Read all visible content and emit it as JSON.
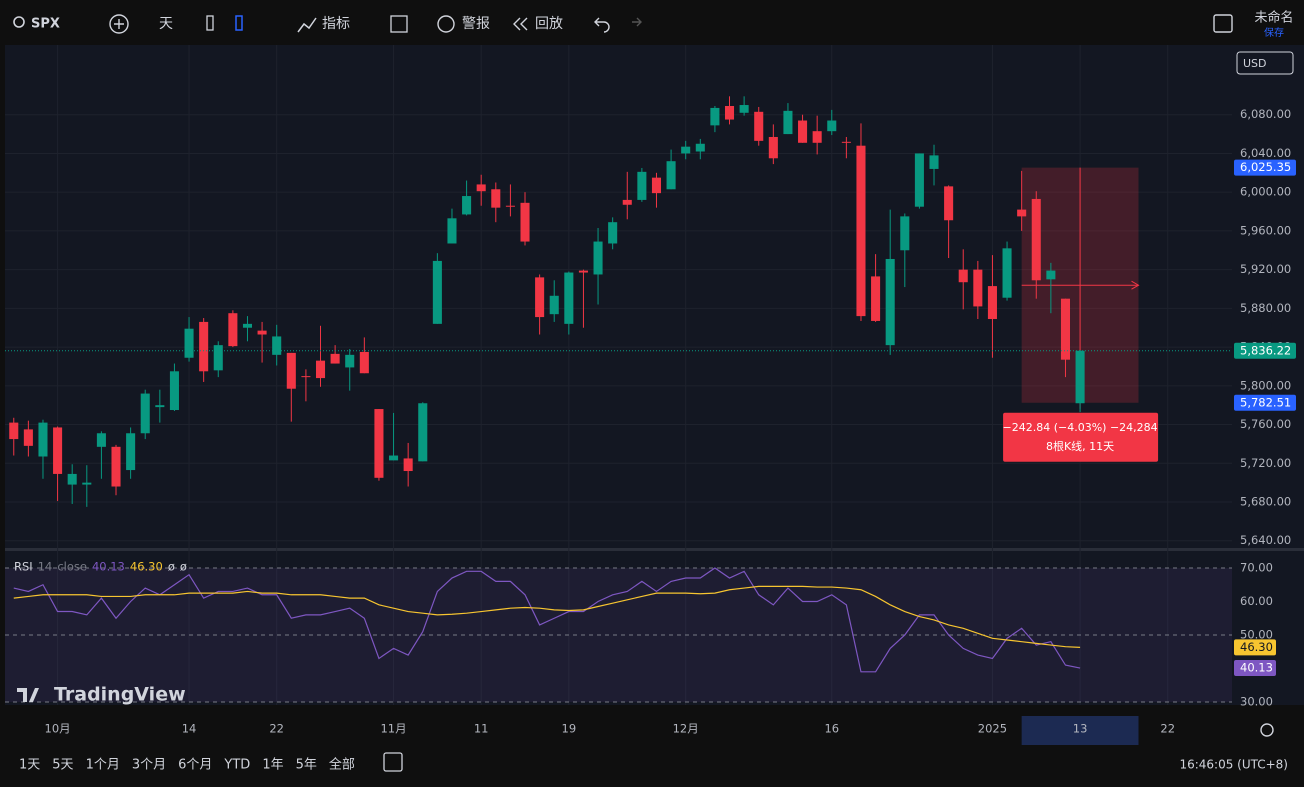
{
  "toolbar": {
    "symbol": "SPX",
    "interval": "天",
    "indicators": "指标",
    "alerts": "警报",
    "replay": "回放",
    "layout_name": "未命名",
    "save": "保存",
    "currency": "USD"
  },
  "chart_data": [
    {
      "type": "candlestick",
      "up_color": "#089981",
      "down_color": "#f23645",
      "open": [
        5762,
        5755,
        5727,
        5757,
        5698,
        5698,
        5737,
        5737,
        5713,
        5751,
        5778,
        5775,
        5829,
        5866,
        5816,
        5875,
        5860,
        5857,
        5832,
        5834,
        5810,
        5826,
        5833,
        5819,
        5835,
        5776,
        5723,
        5725,
        5722,
        5864,
        5947,
        5977,
        6008,
        6003,
        5986,
        5989,
        5912,
        5874,
        5864,
        5919,
        5915,
        5947,
        5992,
        5992,
        6015,
        6003,
        6040,
        6042,
        6069,
        6089,
        6082,
        6083,
        6057,
        6060,
        6074,
        6063,
        6063,
        6052,
        6048,
        5913,
        5842,
        5940,
        5985,
        6024,
        6006,
        5920,
        5920,
        5903,
        5891,
        5982,
        5993,
        5910,
        5890,
        5782
      ],
      "high": [
        5767,
        5764,
        5765,
        5758,
        5719,
        5718,
        5753,
        5739,
        5757,
        5796,
        5796,
        5823,
        5871,
        5870,
        5846,
        5878,
        5872,
        5866,
        5863,
        5834,
        5817,
        5862,
        5842,
        5838,
        5850,
        5776,
        5772,
        5741,
        5783,
        5937,
        5983,
        6012,
        6018,
        6010,
        6008,
        6000,
        5915,
        5909,
        5918,
        5920,
        5963,
        5974,
        6021,
        6025,
        6020,
        6044,
        6053,
        6055,
        6089,
        6099,
        6099,
        6088,
        6070,
        6092,
        6080,
        6079,
        6085,
        6057,
        6071,
        5936,
        5982,
        5978,
        6040,
        6049,
        6007,
        5941,
        5929,
        5935,
        5949,
        6022,
        6001,
        5927,
        5890,
        5837
      ],
      "low": [
        5728,
        5727,
        5704,
        5681,
        5678,
        5675,
        5704,
        5687,
        5704,
        5745,
        5762,
        5774,
        5825,
        5804,
        5809,
        5840,
        5846,
        5824,
        5821,
        5763,
        5784,
        5799,
        5823,
        5795,
        5813,
        5702,
        5723,
        5696,
        5722,
        5864,
        5947,
        5976,
        5986,
        5969,
        5975,
        5945,
        5853,
        5866,
        5853,
        5860,
        5884,
        5941,
        5972,
        5990,
        5984,
        6003,
        6034,
        6034,
        6062,
        6070,
        6079,
        6048,
        6029,
        6060,
        6051,
        6039,
        6059,
        6035,
        5867,
        5866,
        5832,
        5902,
        5983,
        6007,
        5932,
        5879,
        5869,
        5829,
        5888,
        5960,
        5890,
        5875,
        5809,
        5773
      ],
      "close": [
        5745,
        5738,
        5762,
        5709,
        5709,
        5700,
        5751,
        5696,
        5751,
        5792,
        5780,
        5815,
        5859,
        5815,
        5842,
        5841,
        5864,
        5853,
        5851,
        5797,
        5809,
        5808,
        5823,
        5832,
        5813,
        5705,
        5728,
        5712,
        5782,
        5929,
        5973,
        5996,
        6001,
        5984,
        5985,
        5949,
        5871,
        5893,
        5917,
        5917,
        5949,
        5969,
        5987,
        6021,
        5999,
        6032,
        6047,
        6050,
        6087,
        6075,
        6090,
        6053,
        6035,
        6084,
        6051,
        6051,
        6074,
        6051,
        5872,
        5867,
        5931,
        5975,
        6040,
        6038,
        5971,
        5907,
        5882,
        5869,
        5942,
        5975,
        5909,
        5919,
        5827,
        5836.22
      ],
      "xlim": [
        -0.6,
        83.4
      ],
      "ylim": [
        5632.5,
        6152
      ],
      "xticks": [
        {
          "value": 3,
          "label": "10月"
        },
        {
          "value": 12,
          "label": "14"
        },
        {
          "value": 18,
          "label": "22"
        },
        {
          "value": 26,
          "label": "11月"
        },
        {
          "value": 32,
          "label": "11"
        },
        {
          "value": 38,
          "label": "19"
        },
        {
          "value": 46,
          "label": "12月"
        },
        {
          "value": 56,
          "label": "16"
        },
        {
          "value": 67,
          "label": "2025"
        },
        {
          "value": 73,
          "label": "13"
        },
        {
          "value": 79,
          "label": "22"
        }
      ],
      "yticks": [
        {
          "value": 5640,
          "label": "5,640.00"
        },
        {
          "value": 5680,
          "label": "5,680.00"
        },
        {
          "value": 5720,
          "label": "5,720.00"
        },
        {
          "value": 5760,
          "label": "5,760.00"
        },
        {
          "value": 5800,
          "label": "5,800.00"
        },
        {
          "value": 5840,
          "label": "5,840.00"
        },
        {
          "value": 5880,
          "label": "5,880.00"
        },
        {
          "value": 5920,
          "label": "5,920.00"
        },
        {
          "value": 5960,
          "label": "5,960.00"
        },
        {
          "value": 6000,
          "label": "6,000.00"
        },
        {
          "value": 6040,
          "label": "6,040.00"
        },
        {
          "value": 6080,
          "label": "6,080.00"
        }
      ],
      "price_labels": [
        {
          "value": 6025.35,
          "label": "6,025.35",
          "color": "#2962ff"
        },
        {
          "value": 5836.22,
          "label": "5,836.22",
          "color": "#089981"
        },
        {
          "value": 5782.51,
          "label": "5,782.51",
          "color": "#2962ff"
        }
      ],
      "measure": {
        "from": 69,
        "to": 77,
        "text": "−242.84 (−4.03%) −24,284",
        "text2": "8根K线, 11天"
      }
    },
    {
      "type": "line",
      "title": "RSI",
      "params": [
        "14",
        "close"
      ],
      "last_value_labels": [
        "40.13",
        "46.30"
      ],
      "extra": [
        "ø",
        "ø"
      ],
      "xlim": [
        -0.6,
        83.4
      ],
      "ylim": [
        29.1,
        75.07
      ],
      "yticks": [
        {
          "value": 30,
          "label": "30.00"
        },
        {
          "value": 50,
          "label": "50.00"
        },
        {
          "value": 60,
          "label": "60.00"
        },
        {
          "value": 70,
          "label": "70.00"
        }
      ],
      "levels": [
        30,
        50,
        70
      ],
      "series": [
        {
          "name": "RSI",
          "color": "#7e57c2",
          "values": [
            64,
            63,
            65,
            57,
            57,
            56,
            61,
            55,
            60,
            64,
            62,
            65,
            68,
            61,
            63,
            63,
            64,
            62,
            62,
            55,
            56,
            56,
            57,
            58,
            55,
            43,
            46,
            44,
            51,
            63,
            67,
            69,
            69,
            66,
            66,
            62,
            53,
            55,
            57,
            57,
            60,
            62,
            63,
            66,
            63,
            66,
            67,
            67,
            70,
            67,
            69,
            62,
            59,
            64,
            60,
            60,
            62,
            59,
            39,
            39,
            46,
            50,
            56,
            56,
            50,
            46,
            44,
            43,
            49,
            52,
            47,
            48,
            41,
            40.13
          ]
        },
        {
          "color": "#f7c530",
          "values": [
            61,
            61.5,
            62,
            62,
            62,
            62,
            61.5,
            61.5,
            61.5,
            62,
            62,
            62,
            62.5,
            62.5,
            62.5,
            62.5,
            63,
            62.5,
            62.5,
            62,
            62,
            62,
            61.5,
            61,
            61,
            59,
            58,
            57,
            56.5,
            56,
            56.2,
            56.5,
            57,
            57.5,
            58,
            58.2,
            58,
            57.5,
            57.3,
            57.5,
            58.5,
            59.5,
            60.5,
            61.5,
            62.5,
            62.5,
            62.5,
            62.3,
            62.5,
            63.5,
            64,
            64.5,
            64.5,
            64.5,
            64.5,
            64.3,
            64.3,
            64,
            63.5,
            61.5,
            59,
            57,
            55.5,
            54.5,
            53,
            52,
            50.5,
            49,
            48.5,
            48,
            47.5,
            47,
            46.5,
            46.3
          ]
        }
      ]
    }
  ],
  "logo": "TradingView",
  "timeframes": [
    "1天",
    "5天",
    "1个月",
    "3个月",
    "6个月",
    "YTD",
    "1年",
    "5年",
    "全部"
  ],
  "clock": "16:46:05 (UTC+8)"
}
